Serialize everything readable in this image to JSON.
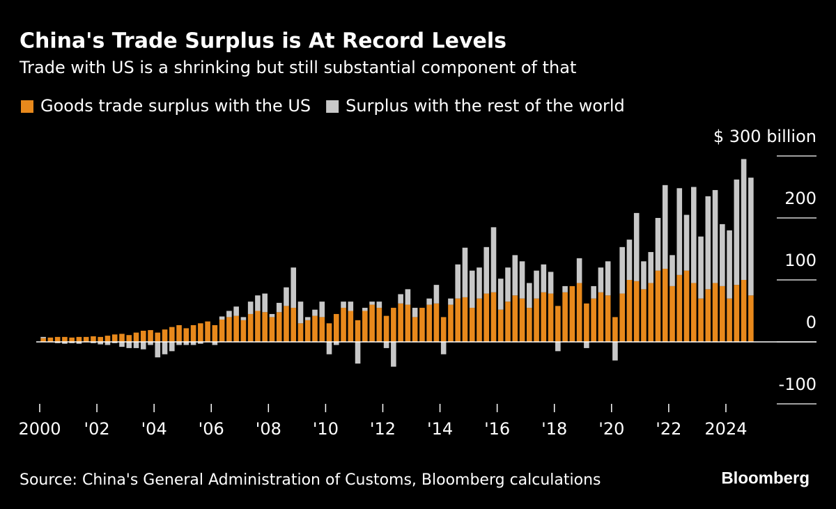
{
  "chart_data": {
    "type": "stacked_bar",
    "title": "China's Trade Surplus is At Record Levels",
    "subtitle": "Trade with US is a shrinking but still substantial component of that",
    "source": "Source: China's General Administration of Customs, Bloomberg calculations",
    "brand": "Bloomberg",
    "categories": [
      "2000",
      null,
      null,
      null,
      null,
      null,
      null,
      null,
      "'02",
      null,
      null,
      null,
      null,
      null,
      null,
      null,
      "'04",
      null,
      null,
      null,
      null,
      null,
      null,
      null,
      "'06",
      null,
      null,
      null,
      null,
      null,
      null,
      null,
      "'08",
      null,
      null,
      null,
      null,
      null,
      null,
      null,
      "'10",
      null,
      null,
      null,
      null,
      null,
      null,
      null,
      "'12",
      null,
      null,
      null,
      null,
      null,
      null,
      null,
      "'14",
      null,
      null,
      null,
      null,
      null,
      null,
      null,
      "'16",
      null,
      null,
      null,
      null,
      null,
      null,
      null,
      "'18",
      null,
      null,
      null,
      null,
      null,
      null,
      null,
      "'20",
      null,
      null,
      null,
      null,
      null,
      null,
      null,
      "'22",
      null,
      null,
      null,
      null,
      null,
      null,
      null,
      "2024",
      null,
      null,
      null
    ],
    "series": [
      {
        "name": "Goods trade surplus with the US",
        "color": "#e8891c",
        "values": [
          6,
          7,
          8,
          8,
          7,
          8,
          8,
          9,
          8,
          10,
          12,
          13,
          11,
          15,
          18,
          19,
          15,
          20,
          24,
          27,
          22,
          27,
          30,
          33,
          27,
          36,
          40,
          42,
          35,
          45,
          50,
          48,
          40,
          48,
          58,
          55,
          30,
          35,
          42,
          40,
          30,
          45,
          55,
          50,
          35,
          50,
          60,
          55,
          42,
          55,
          62,
          60,
          40,
          55,
          60,
          62,
          40,
          60,
          70,
          72,
          55,
          70,
          78,
          80,
          52,
          65,
          75,
          70,
          55,
          70,
          80,
          78,
          58,
          80,
          90,
          95,
          62,
          70,
          80,
          75,
          40,
          78,
          100,
          98,
          85,
          95,
          115,
          118,
          90,
          108,
          115,
          95,
          70,
          85,
          95,
          90,
          70,
          92,
          100,
          75
        ]
      },
      {
        "name": "Surplus with the rest of the world",
        "color": "#c8c8c8",
        "values": [
          2,
          0,
          -2,
          -3,
          -2,
          -3,
          0,
          -2,
          -4,
          -5,
          -2,
          -8,
          -10,
          -10,
          -12,
          -5,
          -25,
          -20,
          -15,
          -5,
          -5,
          -5,
          -3,
          0,
          -5,
          5,
          10,
          15,
          5,
          20,
          25,
          30,
          5,
          15,
          30,
          65,
          35,
          5,
          10,
          25,
          -20,
          -5,
          10,
          15,
          -35,
          5,
          5,
          10,
          -10,
          -40,
          15,
          25,
          15,
          0,
          10,
          30,
          -20,
          10,
          55,
          80,
          60,
          50,
          75,
          105,
          50,
          55,
          65,
          60,
          40,
          45,
          45,
          35,
          -15,
          10,
          0,
          40,
          -10,
          20,
          40,
          55,
          -30,
          75,
          65,
          110,
          45,
          50,
          85,
          135,
          50,
          140,
          90,
          155,
          100,
          150,
          150,
          100,
          110,
          170,
          195,
          190
        ]
      }
    ],
    "ylim": [
      -100,
      300
    ],
    "yticks": [
      -100,
      0,
      100,
      200,
      {
        "value": 300,
        "label": "$ 300 billion"
      }
    ]
  }
}
